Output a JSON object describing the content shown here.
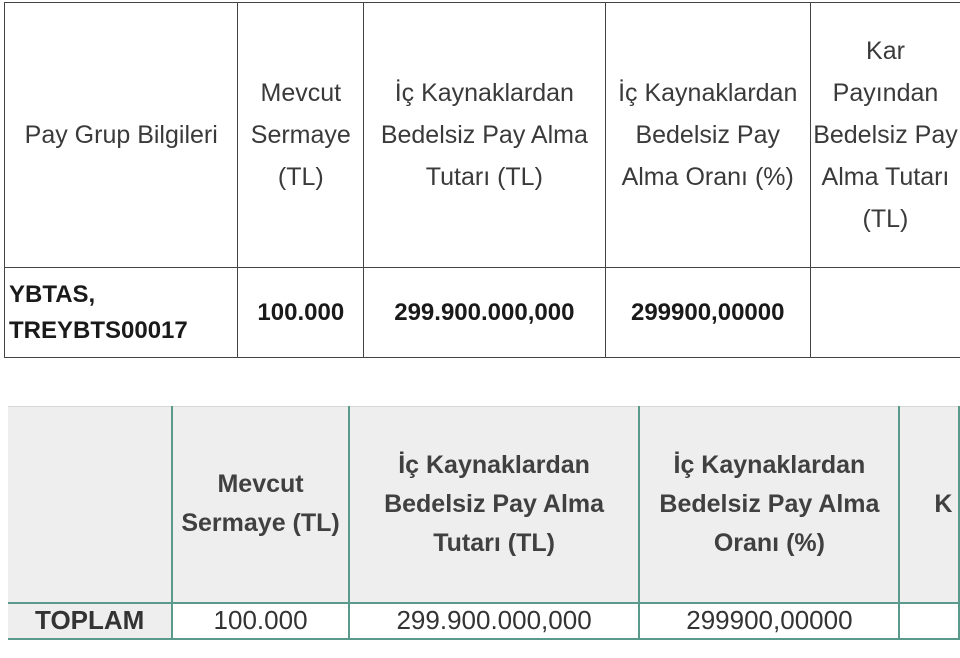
{
  "table1": {
    "headers": [
      "Pay Grup Bilgileri",
      "Mevcut Sermaye (TL)",
      "İç Kaynaklardan Bedelsiz Pay Alma Tutarı (TL)",
      "İç Kaynaklardan Bedelsiz Pay Alma Oranı (%)",
      "Kar Payından Bedelsiz Pay Alma Tutarı (TL)"
    ],
    "rows": [
      {
        "group": "YBTAS, TREYBTS00017",
        "capital": "100.000",
        "internal_amount": "299.900.000,000",
        "internal_rate": "299900,00000",
        "dividend_amount": ""
      }
    ]
  },
  "table2": {
    "headers": [
      "",
      "Mevcut Sermaye (TL)",
      "İç Kaynaklardan Bedelsiz Pay Alma Tutarı (TL)",
      "İç Kaynaklardan Bedelsiz Pay Alma Oranı (%)",
      "K"
    ],
    "total_row": {
      "label": "TOPLAM",
      "capital": "100.000",
      "internal_amount": "299.900.000,000",
      "internal_rate": "299900,00000",
      "dividend_amount": ""
    }
  }
}
